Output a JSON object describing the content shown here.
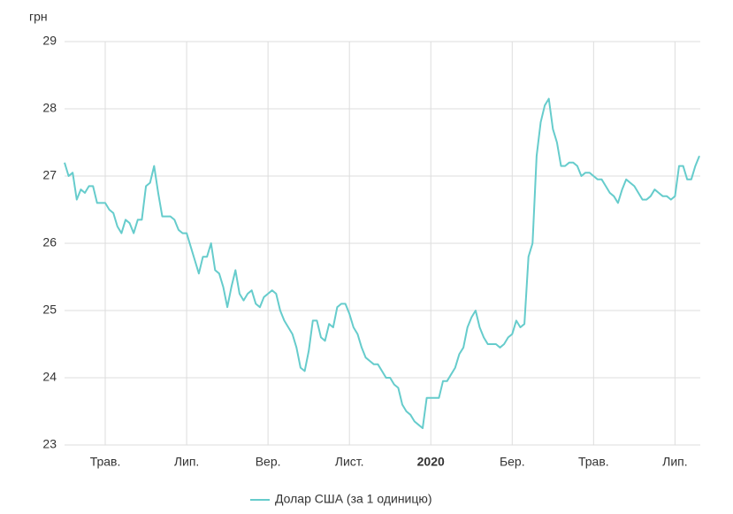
{
  "chart_data": {
    "type": "line",
    "y_unit": "грн",
    "categories": [
      null,
      null,
      null,
      null,
      null,
      null,
      null,
      null,
      null,
      null,
      "Трав.",
      null,
      null,
      null,
      null,
      null,
      null,
      null,
      null,
      null,
      null,
      null,
      null,
      null,
      null,
      null,
      null,
      null,
      null,
      null,
      "Лип.",
      null,
      null,
      null,
      null,
      null,
      null,
      null,
      null,
      null,
      null,
      null,
      null,
      null,
      null,
      null,
      null,
      null,
      null,
      null,
      "Вер.",
      null,
      null,
      null,
      null,
      null,
      null,
      null,
      null,
      null,
      null,
      null,
      null,
      null,
      null,
      null,
      null,
      null,
      null,
      null,
      "Лист.",
      null,
      null,
      null,
      null,
      null,
      null,
      null,
      null,
      null,
      null,
      null,
      null,
      null,
      null,
      null,
      null,
      null,
      null,
      null,
      "2020",
      null,
      null,
      null,
      null,
      null,
      null,
      null,
      null,
      null,
      null,
      null,
      null,
      null,
      null,
      null,
      null,
      null,
      null,
      null,
      "Бер.",
      null,
      null,
      null,
      null,
      null,
      null,
      null,
      null,
      null,
      null,
      null,
      null,
      null,
      null,
      null,
      null,
      null,
      null,
      null,
      "Трав.",
      null,
      null,
      null,
      null,
      null,
      null,
      null,
      null,
      null,
      null,
      null,
      null,
      null,
      null,
      null,
      null,
      null,
      null,
      null,
      "Лип.",
      null,
      null,
      null,
      null,
      null,
      null
    ],
    "series": [
      {
        "name": "Долар США (за 1 одиницю)",
        "color": "#66cccc",
        "values": [
          27.2,
          27.0,
          27.05,
          26.65,
          26.8,
          26.75,
          26.85,
          26.85,
          26.6,
          26.6,
          26.6,
          26.5,
          26.45,
          26.25,
          26.15,
          26.35,
          26.3,
          26.15,
          26.35,
          26.35,
          26.85,
          26.9,
          27.15,
          26.75,
          26.4,
          26.4,
          26.4,
          26.35,
          26.2,
          26.15,
          26.15,
          25.95,
          25.75,
          25.55,
          25.8,
          25.8,
          26.0,
          25.6,
          25.55,
          25.35,
          25.05,
          25.35,
          25.6,
          25.25,
          25.15,
          25.25,
          25.3,
          25.1,
          25.05,
          25.2,
          25.25,
          25.3,
          25.25,
          25.0,
          24.85,
          24.75,
          24.65,
          24.45,
          24.15,
          24.1,
          24.4,
          24.85,
          24.85,
          24.6,
          24.55,
          24.8,
          24.75,
          25.05,
          25.1,
          25.1,
          24.95,
          24.75,
          24.65,
          24.45,
          24.3,
          24.25,
          24.2,
          24.2,
          24.1,
          24.0,
          24.0,
          23.9,
          23.85,
          23.6,
          23.5,
          23.45,
          23.35,
          23.3,
          23.25,
          23.7,
          23.7,
          23.7,
          23.7,
          23.95,
          23.95,
          24.05,
          24.15,
          24.35,
          24.45,
          24.75,
          24.9,
          25.0,
          24.75,
          24.6,
          24.5,
          24.5,
          24.5,
          24.45,
          24.5,
          24.6,
          24.65,
          24.85,
          24.75,
          24.8,
          25.8,
          26.0,
          27.3,
          27.8,
          28.05,
          28.15,
          27.7,
          27.5,
          27.15,
          27.15,
          27.2,
          27.2,
          27.15,
          27.0,
          27.05,
          27.05,
          27.0,
          26.95,
          26.95,
          26.85,
          26.75,
          26.7,
          26.6,
          26.8,
          26.95,
          26.9,
          26.85,
          26.75,
          26.65,
          26.65,
          26.7,
          26.8,
          26.75,
          26.7,
          26.7,
          26.65,
          26.7,
          27.15,
          27.15,
          26.95,
          26.95,
          27.15,
          27.3
        ]
      }
    ],
    "ylim": [
      23,
      29
    ],
    "yticks": [
      23,
      24,
      25,
      26,
      27,
      28,
      29
    ],
    "grid": true,
    "legend": "bottom"
  }
}
